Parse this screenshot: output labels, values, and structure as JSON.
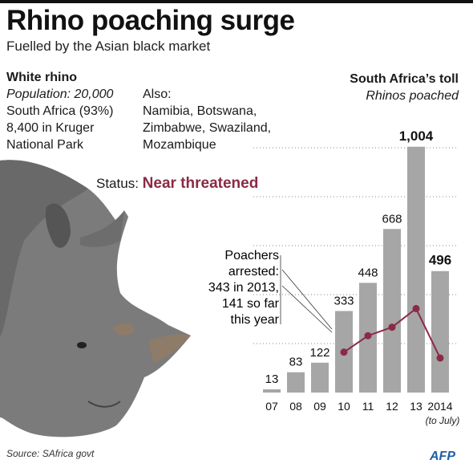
{
  "header": {
    "title": "Rhino poaching surge",
    "subtitle": "Fuelled by the Asian black market"
  },
  "info": {
    "heading": "White rhino",
    "population": "Population: 20,000",
    "line1": "South Africa (93%)",
    "line2": "8,400 in Kruger",
    "line3": "National Park",
    "also": [
      "Also:",
      "Namibia, Botswana,",
      "Zimbabwe, Swaziland,",
      "Mozambique"
    ]
  },
  "status": {
    "label": "Status:",
    "value": "Near threatened"
  },
  "toll": {
    "heading": "South Africa’s toll",
    "subheading": "Rhinos poached"
  },
  "annotation": [
    "Poachers",
    "arrested:",
    "343 in 2013,",
    "141 so far",
    "this year"
  ],
  "source": "Source: SAfrica govt",
  "logo": "AFP",
  "colors": {
    "bar": "#a6a6a6",
    "line": "#8b2a45",
    "status": "#8b2a45",
    "logo": "#1f5fa8"
  },
  "chart_data": {
    "type": "bar",
    "title": "South Africa’s toll",
    "subtitle": "Rhinos poached",
    "categories": [
      "07",
      "08",
      "09",
      "10",
      "11",
      "12",
      "13",
      "2014"
    ],
    "category_note": "(to July)",
    "values": [
      13,
      83,
      122,
      333,
      448,
      668,
      1004,
      496
    ],
    "value_labels": [
      "13",
      "83",
      "122",
      "333",
      "448",
      "668",
      "1,004",
      "496"
    ],
    "bold_labels": [
      "1,004",
      "496"
    ],
    "ylim": [
      0,
      1000
    ],
    "grid": "dotted",
    "line_series": {
      "name": "Poachers arrested",
      "x": [
        "10",
        "11",
        "12",
        "13",
        "2014"
      ],
      "values": [
        165,
        232,
        267,
        343,
        141
      ]
    }
  }
}
